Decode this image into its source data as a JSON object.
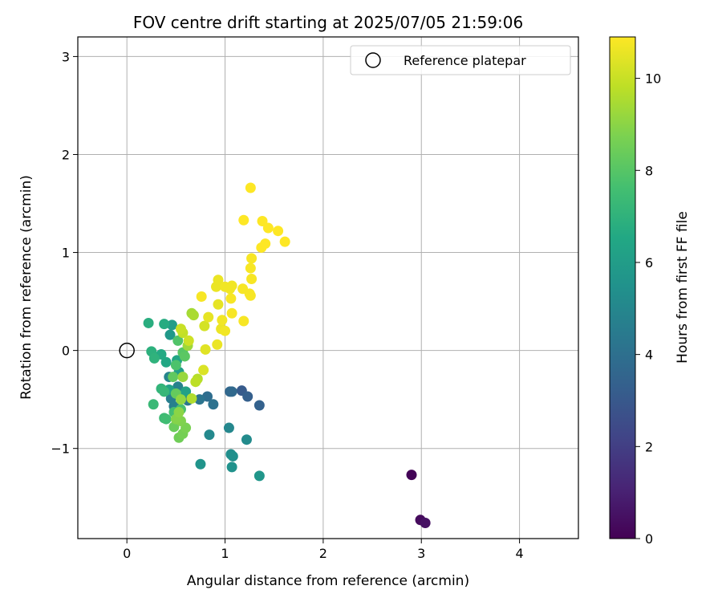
{
  "chart_data": {
    "type": "scatter",
    "title": "FOV centre drift starting at 2025/07/05 21:59:06",
    "xlabel": "Angular distance from reference (arcmin)",
    "ylabel": "Rotation from reference (arcmin)",
    "xlim": [
      -0.5,
      4.6
    ],
    "ylim": [
      -1.92,
      3.2
    ],
    "xticks": [
      "0",
      "1",
      "2",
      "3",
      "4"
    ],
    "yticks": [
      "−1",
      "0",
      "1",
      "2",
      "3"
    ],
    "grid": true,
    "legend": {
      "placement": "top-right",
      "entries": [
        "Reference platepar"
      ]
    },
    "reference_point": {
      "x": 0,
      "y": 0
    },
    "colorbar": {
      "label": "Hours from first FF file",
      "colormap": "viridis",
      "range": [
        0,
        10.9
      ],
      "ticks": [
        "0",
        "2",
        "4",
        "6",
        "8",
        "10"
      ]
    },
    "points": [
      {
        "x": 2.9,
        "y": -1.27,
        "c": 0.1
      },
      {
        "x": 2.99,
        "y": -1.73,
        "c": 0.3
      },
      {
        "x": 3.04,
        "y": -1.76,
        "c": 0.5
      },
      {
        "x": 1.17,
        "y": -0.41,
        "c": 3.1
      },
      {
        "x": 1.23,
        "y": -0.47,
        "c": 3.3
      },
      {
        "x": 1.35,
        "y": -0.56,
        "c": 3.4
      },
      {
        "x": 1.05,
        "y": -0.42,
        "c": 3.6
      },
      {
        "x": 1.07,
        "y": -0.42,
        "c": 3.7
      },
      {
        "x": 0.82,
        "y": -0.47,
        "c": 3.9
      },
      {
        "x": 0.88,
        "y": -0.55,
        "c": 4.1
      },
      {
        "x": 0.74,
        "y": -0.5,
        "c": 4.2
      },
      {
        "x": 0.62,
        "y": -0.51,
        "c": 4.3
      },
      {
        "x": 0.55,
        "y": -0.48,
        "c": 4.5
      },
      {
        "x": 0.45,
        "y": -0.49,
        "c": 4.6
      },
      {
        "x": 0.48,
        "y": -0.57,
        "c": 4.7
      },
      {
        "x": 0.52,
        "y": -0.37,
        "c": 4.8
      },
      {
        "x": 0.43,
        "y": -0.27,
        "c": 4.9
      },
      {
        "x": 1.04,
        "y": -0.79,
        "c": 5.0
      },
      {
        "x": 0.84,
        "y": -0.86,
        "c": 5.1
      },
      {
        "x": 1.22,
        "y": -0.91,
        "c": 5.2
      },
      {
        "x": 1.06,
        "y": -1.06,
        "c": 5.3
      },
      {
        "x": 1.08,
        "y": -1.08,
        "c": 5.4
      },
      {
        "x": 1.07,
        "y": -1.19,
        "c": 5.5
      },
      {
        "x": 0.75,
        "y": -1.16,
        "c": 5.6
      },
      {
        "x": 1.35,
        "y": -1.28,
        "c": 5.7
      },
      {
        "x": 0.44,
        "y": 0.16,
        "c": 5.8
      },
      {
        "x": 0.46,
        "y": 0.26,
        "c": 6.0
      },
      {
        "x": 0.53,
        "y": -0.22,
        "c": 6.1
      },
      {
        "x": 0.6,
        "y": -0.42,
        "c": 6.2
      },
      {
        "x": 0.43,
        "y": -0.4,
        "c": 6.3
      },
      {
        "x": 0.51,
        "y": -0.1,
        "c": 6.4
      },
      {
        "x": 0.4,
        "y": -0.12,
        "c": 6.5
      },
      {
        "x": 0.35,
        "y": -0.04,
        "c": 6.6
      },
      {
        "x": 0.38,
        "y": 0.27,
        "c": 6.7
      },
      {
        "x": 0.22,
        "y": 0.28,
        "c": 6.8
      },
      {
        "x": 0.25,
        "y": -0.01,
        "c": 6.9
      },
      {
        "x": 0.28,
        "y": -0.08,
        "c": 7.0
      },
      {
        "x": 0.35,
        "y": -0.39,
        "c": 7.1
      },
      {
        "x": 0.38,
        "y": -0.42,
        "c": 7.2
      },
      {
        "x": 0.27,
        "y": -0.55,
        "c": 7.3
      },
      {
        "x": 0.38,
        "y": -0.69,
        "c": 7.4
      },
      {
        "x": 0.4,
        "y": -0.7,
        "c": 7.5
      },
      {
        "x": 0.48,
        "y": -0.63,
        "c": 7.6
      },
      {
        "x": 0.55,
        "y": -0.6,
        "c": 7.7
      },
      {
        "x": 0.5,
        "y": -0.15,
        "c": 7.8
      },
      {
        "x": 0.52,
        "y": 0.1,
        "c": 7.9
      },
      {
        "x": 0.57,
        "y": -0.02,
        "c": 8.0
      },
      {
        "x": 0.59,
        "y": -0.06,
        "c": 8.1
      },
      {
        "x": 0.47,
        "y": -0.27,
        "c": 8.2
      },
      {
        "x": 0.5,
        "y": -0.44,
        "c": 8.3
      },
      {
        "x": 0.48,
        "y": -0.78,
        "c": 8.4
      },
      {
        "x": 0.53,
        "y": -0.89,
        "c": 8.5
      },
      {
        "x": 0.57,
        "y": -0.85,
        "c": 8.6
      },
      {
        "x": 0.6,
        "y": -0.79,
        "c": 8.7
      },
      {
        "x": 0.55,
        "y": -0.72,
        "c": 8.8
      },
      {
        "x": 0.5,
        "y": -0.7,
        "c": 8.9
      },
      {
        "x": 0.53,
        "y": -0.63,
        "c": 9.0
      },
      {
        "x": 0.55,
        "y": -0.5,
        "c": 9.1
      },
      {
        "x": 0.57,
        "y": -0.27,
        "c": 9.2
      },
      {
        "x": 0.62,
        "y": 0.05,
        "c": 9.3
      },
      {
        "x": 0.66,
        "y": 0.38,
        "c": 9.4
      },
      {
        "x": 0.68,
        "y": 0.36,
        "c": 9.5
      },
      {
        "x": 0.66,
        "y": -0.49,
        "c": 9.6
      },
      {
        "x": 0.72,
        "y": -0.29,
        "c": 9.7
      },
      {
        "x": 0.7,
        "y": -0.32,
        "c": 9.8
      },
      {
        "x": 0.57,
        "y": 0.18,
        "c": 9.9
      },
      {
        "x": 0.55,
        "y": 0.22,
        "c": 10.0
      },
      {
        "x": 0.63,
        "y": 0.1,
        "c": 10.1
      },
      {
        "x": 0.79,
        "y": 0.25,
        "c": 10.2
      },
      {
        "x": 0.78,
        "y": -0.2,
        "c": 10.3
      },
      {
        "x": 0.8,
        "y": 0.01,
        "c": 10.4
      },
      {
        "x": 0.83,
        "y": 0.34,
        "c": 10.5
      },
      {
        "x": 0.93,
        "y": 0.47,
        "c": 10.5
      },
      {
        "x": 0.91,
        "y": 0.65,
        "c": 10.6
      },
      {
        "x": 0.93,
        "y": 0.72,
        "c": 10.6
      },
      {
        "x": 0.92,
        "y": 0.06,
        "c": 10.6
      },
      {
        "x": 0.96,
        "y": 0.22,
        "c": 10.6
      },
      {
        "x": 0.97,
        "y": 0.31,
        "c": 10.7
      },
      {
        "x": 1.0,
        "y": 0.2,
        "c": 10.7
      },
      {
        "x": 1.0,
        "y": 0.65,
        "c": 10.7
      },
      {
        "x": 1.05,
        "y": 0.63,
        "c": 10.7
      },
      {
        "x": 1.07,
        "y": 0.66,
        "c": 10.7
      },
      {
        "x": 1.06,
        "y": 0.53,
        "c": 10.8
      },
      {
        "x": 1.07,
        "y": 0.38,
        "c": 10.8
      },
      {
        "x": 0.76,
        "y": 0.55,
        "c": 10.8
      },
      {
        "x": 1.18,
        "y": 0.63,
        "c": 10.8
      },
      {
        "x": 1.19,
        "y": 0.3,
        "c": 10.8
      },
      {
        "x": 1.25,
        "y": 0.58,
        "c": 10.8
      },
      {
        "x": 1.26,
        "y": 0.56,
        "c": 10.8
      },
      {
        "x": 1.27,
        "y": 0.73,
        "c": 10.8
      },
      {
        "x": 1.26,
        "y": 0.84,
        "c": 10.8
      },
      {
        "x": 1.27,
        "y": 0.94,
        "c": 10.8
      },
      {
        "x": 1.37,
        "y": 1.05,
        "c": 10.9
      },
      {
        "x": 1.41,
        "y": 1.09,
        "c": 10.9
      },
      {
        "x": 1.38,
        "y": 1.32,
        "c": 10.9
      },
      {
        "x": 1.44,
        "y": 1.25,
        "c": 10.9
      },
      {
        "x": 1.54,
        "y": 1.22,
        "c": 10.9
      },
      {
        "x": 1.61,
        "y": 1.11,
        "c": 10.9
      },
      {
        "x": 1.19,
        "y": 1.33,
        "c": 10.9
      },
      {
        "x": 1.26,
        "y": 1.66,
        "c": 10.9
      }
    ]
  }
}
